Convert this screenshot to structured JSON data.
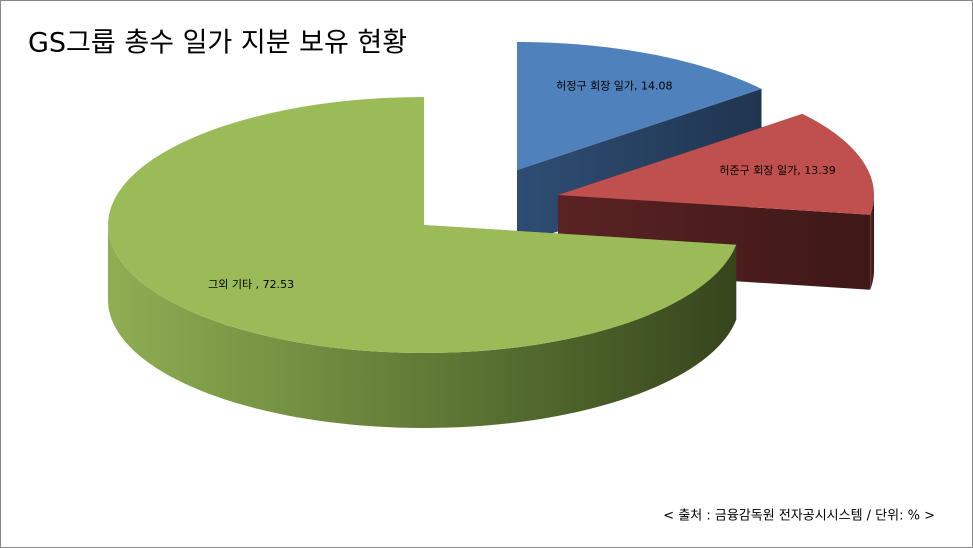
{
  "chart_data": {
    "type": "pie3d",
    "title": "GS그룹 총수 일가 지분 보유 현황",
    "values": [
      14.08,
      13.39,
      72.53
    ],
    "value_labels": [
      "허정구 회장 일가, 14.08",
      "허준구 회장 일가, 13.39",
      "그외 기타 , 72.53"
    ],
    "colors": [
      "#4f81bd",
      "#c0504d",
      "#9bbb59"
    ],
    "source": "< 출처 : 금융감독원 전자공시시스템 / 단위: % >"
  }
}
